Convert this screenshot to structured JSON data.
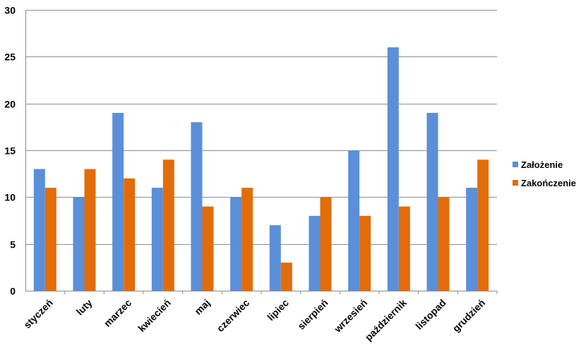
{
  "chart_data": {
    "type": "bar",
    "title": "",
    "xlabel": "",
    "ylabel": "",
    "ylim": [
      0,
      30
    ],
    "yticks": [
      0,
      5,
      10,
      15,
      20,
      25,
      30
    ],
    "grid": true,
    "legend_position": "right",
    "categories": [
      "styczeń",
      "luty",
      "marzec",
      "kwiecień",
      "maj",
      "czerwiec",
      "lipiec",
      "sierpień",
      "wrzesień",
      "październik",
      "listopad",
      "grudzień"
    ],
    "series": [
      {
        "name": "Założenie",
        "color": "#5B8FD8",
        "values": [
          13,
          10,
          19,
          11,
          18,
          10,
          7,
          8,
          15,
          26,
          19,
          11
        ]
      },
      {
        "name": "Zakończenie",
        "color": "#E36C0A",
        "values": [
          11,
          13,
          12,
          14,
          9,
          11,
          3,
          10,
          8,
          9,
          10,
          14
        ]
      }
    ]
  }
}
